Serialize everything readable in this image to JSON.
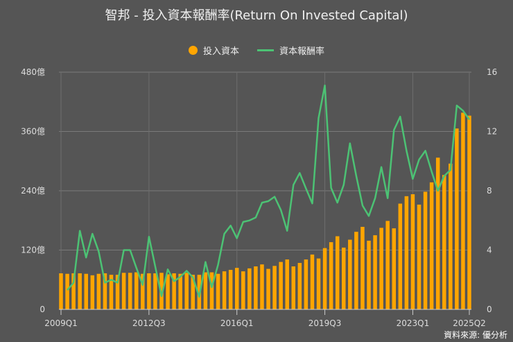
{
  "chart_data": {
    "type": "bar+line",
    "title": "智邦 - 投入資本報酬率(Return On Invested Capital)",
    "legend": [
      {
        "name": "投入資本",
        "color": "#ffa500",
        "type": "bar"
      },
      {
        "name": "資本報酬率",
        "color": "#4cc274",
        "type": "line"
      }
    ],
    "legend_position": "top-center",
    "x_start": "2009Q1",
    "x_ticks": [
      "2009Q1",
      "2012Q3",
      "2016Q1",
      "2019Q3",
      "2023Q1",
      "2025Q2"
    ],
    "x_tick_index": [
      0,
      14,
      28,
      42,
      56,
      65
    ],
    "left_axis": {
      "ticks": [
        "0",
        "120億",
        "240億",
        "360億",
        "480億"
      ],
      "range": [
        0,
        480
      ],
      "unit": "億"
    },
    "right_axis": {
      "ticks": [
        "0",
        "4",
        "8",
        "12",
        "16"
      ],
      "range": [
        0,
        16
      ]
    },
    "grid": true,
    "series": [
      {
        "name": "投入資本",
        "values": [
          73,
          72,
          73,
          73,
          72,
          69,
          72,
          73,
          70,
          70,
          74,
          74,
          75,
          72,
          73,
          73,
          74,
          71,
          73,
          72,
          74,
          70,
          70,
          75,
          75,
          72,
          77,
          80,
          84,
          77,
          83,
          87,
          91,
          82,
          88,
          96,
          101,
          87,
          94,
          101,
          111,
          103,
          124,
          136,
          148,
          125,
          141,
          157,
          167,
          139,
          150,
          165,
          179,
          164,
          214,
          229,
          233,
          212,
          238,
          257,
          307,
          272,
          295,
          366,
          398,
          392
        ]
      },
      {
        "name": "資本報酬率",
        "values": [
          null,
          1.3,
          1.8,
          5.3,
          3.5,
          5.1,
          3.9,
          1.8,
          2.0,
          1.8,
          4.0,
          4.0,
          2.8,
          1.65,
          4.9,
          2.9,
          0.9,
          2.7,
          1.9,
          2.2,
          2.6,
          2.15,
          0.85,
          3.2,
          1.5,
          3.0,
          5.1,
          5.65,
          4.8,
          5.9,
          6.0,
          6.2,
          7.2,
          7.3,
          7.6,
          6.7,
          5.3,
          8.4,
          9.2,
          8.15,
          7.15,
          12.9,
          15.1,
          8.2,
          7.2,
          8.4,
          11.2,
          9.0,
          7.0,
          6.3,
          7.5,
          9.6,
          7.5,
          12.1,
          13.0,
          10.7,
          8.8,
          10.1,
          10.7,
          9.3,
          8.0,
          9.0,
          9.4,
          13.75,
          13.4,
          12.8
        ]
      }
    ]
  },
  "source": "資料來源: 優分析"
}
